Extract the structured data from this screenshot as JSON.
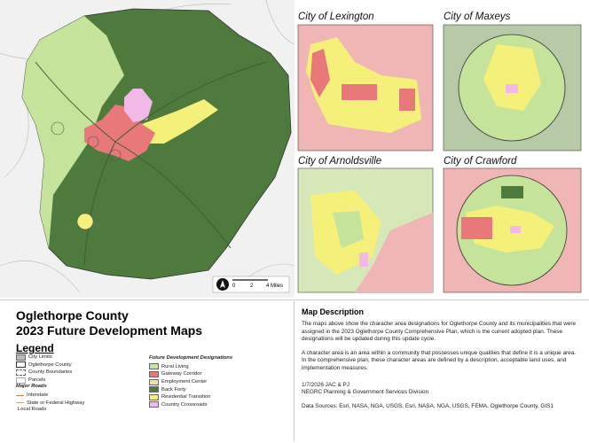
{
  "main_map": {
    "scale_labels": [
      "0",
      "2",
      "4 Miles"
    ]
  },
  "insets": [
    {
      "title": "City of Lexington"
    },
    {
      "title": "City of Maxeys"
    },
    {
      "title": "City of Arnoldsville"
    },
    {
      "title": "City of Crawford"
    }
  ],
  "title": {
    "line1": "Oglethorpe County",
    "line2": "2023 Future Development Maps"
  },
  "legend": {
    "heading": "Legend",
    "reference": [
      "City Limits",
      "Oglethorpe County",
      "County Boundaries",
      "Parcels"
    ],
    "roads_heading": "Major Roads",
    "roads": [
      "Interstate",
      "State or Federal Highway"
    ],
    "local_roads": "Local Roads",
    "designations_heading": "Future Development Designations",
    "designations": [
      {
        "label": "Rural Living",
        "color": "#c5e39a"
      },
      {
        "label": "Gateway Corridor",
        "color": "#e8787a"
      },
      {
        "label": "Employment Center",
        "color": "#efe3a0"
      },
      {
        "label": "Back Forty",
        "color": "#4f7a3e"
      },
      {
        "label": "Residential Transition",
        "color": "#f5f07a"
      },
      {
        "label": "Country Crossroads",
        "color": "#f2b8e8"
      }
    ]
  },
  "description": {
    "heading": "Map Description",
    "paragraphs": [
      "The maps above show the character area designations for Oglethorpe County and its municipalities that were assigned in the 2023 Oglethorpe County Comprehensive Plan, which is the current adopted plan. These designations will be updated during this update cycle.",
      "A character area is an area within a community that possesses unique qualities that define it is a unique area. In the comprehensive plan, these character areas are defined by a description, acceptable land uses, and implementation measures."
    ],
    "date": "1/7/2026 JAC & PJ",
    "organization": "NEGRC Planning & Government Services Division",
    "sources": "Data Sources: Esri, NASA, NGA, USGS, Esri, NASA, NGA, USGS, FEMA, Oglethorpe County, GIS1"
  }
}
